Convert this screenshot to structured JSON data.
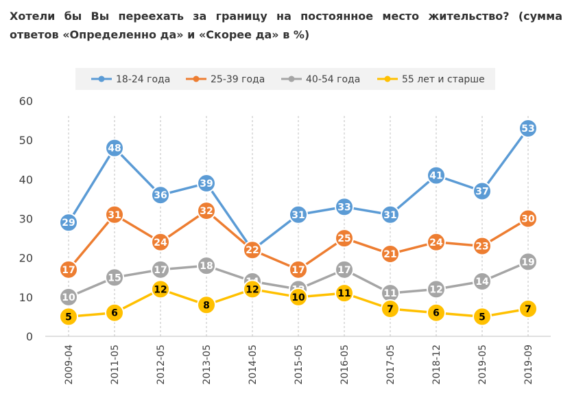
{
  "chart_data": {
    "type": "line",
    "title": "Хотели бы Вы переехать за границу на постоянное место жительство? (сумма ответов «Определенно да» и «Скорее да» в %)",
    "xlabel": "",
    "ylabel": "",
    "categories": [
      "2009-04",
      "2011-05",
      "2012-05",
      "2013-05",
      "2014-05",
      "2015-05",
      "2016-05",
      "2017-05",
      "2018-12",
      "2019-05",
      "2019-09"
    ],
    "ylim": [
      0,
      60
    ],
    "yticks": [
      0,
      10,
      20,
      30,
      40,
      50,
      60
    ],
    "grid": "vertical dashed at each category",
    "legend_position": "top",
    "series": [
      {
        "name": "18-24 года",
        "color": "#5b9bd5",
        "values": [
          29,
          48,
          36,
          39,
          22,
          31,
          33,
          31,
          41,
          37,
          53
        ]
      },
      {
        "name": "25-39 года",
        "color": "#ed7d31",
        "values": [
          17,
          31,
          24,
          32,
          22,
          17,
          25,
          21,
          24,
          23,
          30
        ]
      },
      {
        "name": "40-54 года",
        "color": "#a5a5a5",
        "values": [
          10,
          15,
          17,
          18,
          14,
          12,
          17,
          11,
          12,
          14,
          19
        ]
      },
      {
        "name": "55 лет и старше",
        "color": "#ffc000",
        "values": [
          5,
          6,
          12,
          8,
          12,
          10,
          11,
          7,
          6,
          5,
          7
        ]
      }
    ]
  }
}
